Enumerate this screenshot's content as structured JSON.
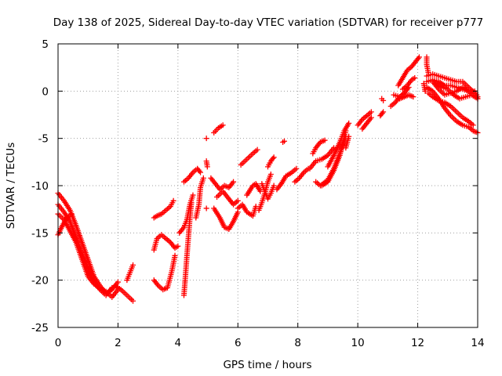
{
  "chart_data": {
    "type": "scatter",
    "title": "Day 138 of 2025, Sidereal Day-to-day VTEC variation (SDTVAR) for receiver p777",
    "xlabel": "GPS time / hours",
    "ylabel": "SDTVAR / TECUs",
    "xlim": [
      0,
      14
    ],
    "ylim": [
      -25,
      5
    ],
    "xticks": [
      0,
      2,
      4,
      6,
      8,
      10,
      12,
      14
    ],
    "yticks": [
      -25,
      -20,
      -15,
      -10,
      -5,
      0,
      5
    ],
    "grid": true,
    "marker": "+",
    "color": "#ff0000",
    "series": [
      {
        "segments": [
          [
            [
              0.0,
              -10.8
            ],
            [
              0.2,
              -11.6
            ],
            [
              0.4,
              -12.6
            ],
            [
              0.6,
              -14.2
            ],
            [
              0.8,
              -16.0
            ],
            [
              1.0,
              -17.8
            ],
            [
              1.2,
              -19.6
            ],
            [
              1.4,
              -20.6
            ],
            [
              1.6,
              -21.4
            ],
            [
              1.8,
              -21.0
            ],
            [
              2.0,
              -20.2
            ]
          ],
          [
            [
              0.0,
              -12.0
            ],
            [
              0.2,
              -12.8
            ],
            [
              0.4,
              -13.8
            ],
            [
              0.6,
              -15.4
            ],
            [
              0.8,
              -17.2
            ],
            [
              1.0,
              -18.8
            ],
            [
              1.2,
              -20.2
            ],
            [
              1.4,
              -21.0
            ],
            [
              1.6,
              -21.6
            ],
            [
              1.8,
              -20.8
            ]
          ],
          [
            [
              0.0,
              -13.0
            ],
            [
              0.2,
              -13.6
            ],
            [
              0.4,
              -14.8
            ],
            [
              0.6,
              -16.0
            ],
            [
              0.8,
              -17.8
            ],
            [
              1.0,
              -19.6
            ],
            [
              1.2,
              -20.4
            ],
            [
              1.4,
              -20.9
            ],
            [
              1.6,
              -21.2
            ],
            [
              1.8,
              -21.8
            ],
            [
              2.0,
              -21.0
            ]
          ],
          [
            [
              0.0,
              -15.2
            ],
            [
              0.15,
              -14.2
            ],
            [
              0.3,
              -13.4
            ],
            [
              0.45,
              -13.0
            ]
          ],
          [
            [
              1.9,
              -20.6
            ],
            [
              2.1,
              -21.0
            ],
            [
              2.3,
              -21.6
            ],
            [
              2.5,
              -22.2
            ]
          ],
          [
            [
              2.3,
              -20.0
            ],
            [
              2.4,
              -19.2
            ],
            [
              2.5,
              -18.4
            ]
          ],
          [
            [
              3.2,
              -13.4
            ],
            [
              3.3,
              -13.2
            ],
            [
              3.45,
              -13.0
            ],
            [
              3.6,
              -12.6
            ],
            [
              3.75,
              -12.2
            ],
            [
              3.85,
              -11.6
            ]
          ],
          [
            [
              3.2,
              -16.8
            ],
            [
              3.3,
              -15.6
            ],
            [
              3.45,
              -15.2
            ],
            [
              3.6,
              -15.6
            ],
            [
              3.75,
              -16.0
            ],
            [
              3.9,
              -16.6
            ],
            [
              4.0,
              -16.4
            ]
          ],
          [
            [
              3.2,
              -20.0
            ],
            [
              3.35,
              -20.6
            ],
            [
              3.5,
              -21.0
            ],
            [
              3.65,
              -20.8
            ],
            [
              3.8,
              -19.0
            ],
            [
              3.9,
              -17.4
            ]
          ],
          [
            [
              4.05,
              -15.0
            ],
            [
              4.2,
              -14.4
            ],
            [
              4.3,
              -13.6
            ],
            [
              4.4,
              -12.0
            ],
            [
              4.5,
              -11.0
            ]
          ],
          [
            [
              4.2,
              -21.6
            ],
            [
              4.25,
              -19.6
            ],
            [
              4.3,
              -17.4
            ],
            [
              4.35,
              -15.4
            ],
            [
              4.4,
              -13.4
            ],
            [
              4.45,
              -11.8
            ]
          ],
          [
            [
              4.2,
              -9.6
            ],
            [
              4.35,
              -9.2
            ],
            [
              4.5,
              -8.6
            ],
            [
              4.65,
              -8.2
            ],
            [
              4.75,
              -8.6
            ]
          ],
          [
            [
              4.6,
              -13.4
            ],
            [
              4.7,
              -12.0
            ],
            [
              4.75,
              -10.2
            ],
            [
              4.85,
              -9.2
            ]
          ],
          [
            [
              4.95,
              -5.0
            ]
          ],
          [
            [
              4.95,
              -7.4
            ],
            [
              4.98,
              -8.0
            ]
          ],
          [
            [
              4.95,
              -12.4
            ]
          ],
          [
            [
              5.2,
              -4.4
            ],
            [
              5.35,
              -3.9
            ],
            [
              5.5,
              -3.6
            ]
          ],
          [
            [
              5.1,
              -9.2
            ],
            [
              5.25,
              -9.8
            ],
            [
              5.4,
              -10.4
            ],
            [
              5.55,
              -10.0
            ],
            [
              5.7,
              -10.2
            ],
            [
              5.85,
              -9.6
            ]
          ],
          [
            [
              5.2,
              -12.4
            ],
            [
              5.4,
              -13.4
            ],
            [
              5.55,
              -14.4
            ],
            [
              5.7,
              -14.6
            ],
            [
              5.85,
              -13.8
            ],
            [
              6.0,
              -12.8
            ]
          ],
          [
            [
              5.3,
              -11.2
            ],
            [
              5.5,
              -10.6
            ],
            [
              5.7,
              -11.4
            ],
            [
              5.85,
              -12.0
            ],
            [
              6.0,
              -11.6
            ]
          ],
          [
            [
              6.0,
              -12.4
            ],
            [
              6.15,
              -12.0
            ],
            [
              6.3,
              -12.8
            ],
            [
              6.5,
              -13.2
            ],
            [
              6.6,
              -12.2
            ]
          ],
          [
            [
              6.1,
              -7.8
            ],
            [
              6.3,
              -7.2
            ],
            [
              6.5,
              -6.6
            ],
            [
              6.65,
              -6.2
            ]
          ],
          [
            [
              6.3,
              -11.0
            ],
            [
              6.5,
              -10.0
            ],
            [
              6.6,
              -9.8
            ],
            [
              6.75,
              -10.6
            ]
          ],
          [
            [
              6.7,
              -12.6
            ],
            [
              6.8,
              -11.8
            ],
            [
              6.9,
              -10.8
            ],
            [
              7.0,
              -9.6
            ],
            [
              7.1,
              -8.8
            ]
          ],
          [
            [
              6.8,
              -9.8
            ],
            [
              6.9,
              -10.6
            ],
            [
              7.0,
              -11.4
            ],
            [
              7.1,
              -10.8
            ],
            [
              7.2,
              -10.0
            ]
          ],
          [
            [
              7.0,
              -8.0
            ],
            [
              7.1,
              -7.4
            ],
            [
              7.2,
              -7.0
            ]
          ],
          [
            [
              7.5,
              -5.4
            ],
            [
              7.55,
              -5.3
            ]
          ],
          [
            [
              7.3,
              -10.4
            ],
            [
              7.45,
              -9.8
            ],
            [
              7.6,
              -9.0
            ],
            [
              7.8,
              -8.6
            ],
            [
              7.95,
              -8.2
            ]
          ],
          [
            [
              7.9,
              -9.6
            ],
            [
              8.05,
              -9.2
            ],
            [
              8.2,
              -8.6
            ],
            [
              8.35,
              -8.2
            ]
          ],
          [
            [
              8.5,
              -6.6
            ],
            [
              8.6,
              -6.0
            ],
            [
              8.75,
              -5.4
            ],
            [
              8.9,
              -5.2
            ]
          ],
          [
            [
              8.4,
              -8.2
            ],
            [
              8.6,
              -7.4
            ],
            [
              8.8,
              -7.2
            ],
            [
              9.0,
              -6.8
            ],
            [
              9.2,
              -6.0
            ]
          ],
          [
            [
              8.6,
              -9.6
            ],
            [
              8.75,
              -10.0
            ],
            [
              9.0,
              -9.4
            ],
            [
              9.2,
              -8.2
            ],
            [
              9.4,
              -6.6
            ],
            [
              9.6,
              -4.8
            ]
          ],
          [
            [
              8.8,
              -10.0
            ],
            [
              9.0,
              -9.6
            ],
            [
              9.2,
              -8.4
            ],
            [
              9.4,
              -6.8
            ],
            [
              9.6,
              -4.2
            ]
          ],
          [
            [
              9.0,
              -8.0
            ],
            [
              9.2,
              -6.8
            ],
            [
              9.4,
              -5.4
            ],
            [
              9.55,
              -4.2
            ],
            [
              9.7,
              -3.4
            ]
          ],
          [
            [
              9.6,
              -6.0
            ],
            [
              9.7,
              -4.8
            ]
          ],
          [
            [
              10.0,
              -3.6
            ],
            [
              10.15,
              -3.0
            ],
            [
              10.3,
              -2.6
            ],
            [
              10.45,
              -2.2
            ]
          ],
          [
            [
              10.15,
              -4.0
            ],
            [
              10.3,
              -3.4
            ],
            [
              10.45,
              -2.8
            ]
          ],
          [
            [
              10.75,
              -2.6
            ],
            [
              10.85,
              -2.2
            ]
          ],
          [
            [
              10.8,
              -0.8
            ],
            [
              10.85,
              -1.0
            ]
          ],
          [
            [
              11.1,
              -1.6
            ],
            [
              11.25,
              -1.2
            ],
            [
              11.4,
              -0.6
            ],
            [
              11.55,
              -0.2
            ]
          ],
          [
            [
              11.2,
              -0.4
            ],
            [
              11.4,
              -0.6
            ],
            [
              11.55,
              -0.2
            ],
            [
              11.7,
              0.4
            ]
          ],
          [
            [
              11.35,
              0.6
            ],
            [
              11.5,
              1.4
            ],
            [
              11.65,
              2.2
            ],
            [
              11.8,
              2.6
            ],
            [
              11.95,
              3.2
            ],
            [
              12.05,
              3.6
            ]
          ],
          [
            [
              11.5,
              0.2
            ],
            [
              11.65,
              0.6
            ],
            [
              11.8,
              1.2
            ],
            [
              11.9,
              1.4
            ]
          ],
          [
            [
              11.4,
              -0.8
            ],
            [
              11.55,
              -0.6
            ],
            [
              11.7,
              -0.4
            ],
            [
              11.85,
              -0.6
            ]
          ],
          [
            [
              12.3,
              3.6
            ],
            [
              12.3,
              2.8
            ],
            [
              12.35,
              2.0
            ]
          ],
          [
            [
              12.3,
              1.6
            ],
            [
              12.5,
              1.8
            ],
            [
              12.7,
              1.6
            ],
            [
              12.9,
              1.4
            ],
            [
              13.1,
              1.2
            ],
            [
              13.3,
              1.0
            ],
            [
              13.5,
              1.0
            ],
            [
              13.7,
              0.4
            ],
            [
              13.9,
              -0.2
            ],
            [
              14.0,
              -0.8
            ]
          ],
          [
            [
              12.3,
              1.0
            ],
            [
              12.5,
              1.2
            ],
            [
              12.7,
              1.0
            ],
            [
              12.9,
              0.6
            ],
            [
              13.1,
              0.6
            ],
            [
              13.3,
              0.4
            ],
            [
              13.5,
              0.2
            ],
            [
              13.7,
              0.0
            ],
            [
              13.9,
              0.0
            ],
            [
              14.0,
              -0.6
            ]
          ],
          [
            [
              12.3,
              0.4
            ],
            [
              12.5,
              0.0
            ],
            [
              12.7,
              -0.8
            ],
            [
              12.9,
              -1.8
            ],
            [
              13.1,
              -2.6
            ],
            [
              13.3,
              -3.2
            ],
            [
              13.5,
              -3.6
            ],
            [
              13.7,
              -3.8
            ],
            [
              13.85,
              -4.2
            ],
            [
              14.0,
              -4.4
            ]
          ],
          [
            [
              12.35,
              -0.2
            ],
            [
              12.5,
              -0.6
            ],
            [
              12.7,
              -1.0
            ],
            [
              12.9,
              -1.2
            ],
            [
              13.1,
              -1.6
            ],
            [
              13.3,
              -2.2
            ],
            [
              13.5,
              -2.8
            ],
            [
              13.7,
              -3.2
            ],
            [
              13.85,
              -3.6
            ]
          ],
          [
            [
              12.5,
              1.0
            ],
            [
              12.7,
              0.2
            ],
            [
              12.9,
              -0.4
            ],
            [
              13.1,
              -0.2
            ],
            [
              13.3,
              0.0
            ],
            [
              13.5,
              0.4
            ],
            [
              13.7,
              0.0
            ],
            [
              13.85,
              -0.4
            ]
          ],
          [
            [
              12.6,
              0.8
            ],
            [
              12.8,
              0.4
            ],
            [
              13.0,
              0.2
            ],
            [
              13.2,
              -0.4
            ],
            [
              13.4,
              -0.8
            ],
            [
              13.6,
              -0.6
            ],
            [
              13.8,
              -0.4
            ],
            [
              14.0,
              -0.8
            ]
          ],
          [
            [
              12.2,
              0.8
            ],
            [
              12.25,
              0.0
            ]
          ]
        ]
      }
    ]
  }
}
